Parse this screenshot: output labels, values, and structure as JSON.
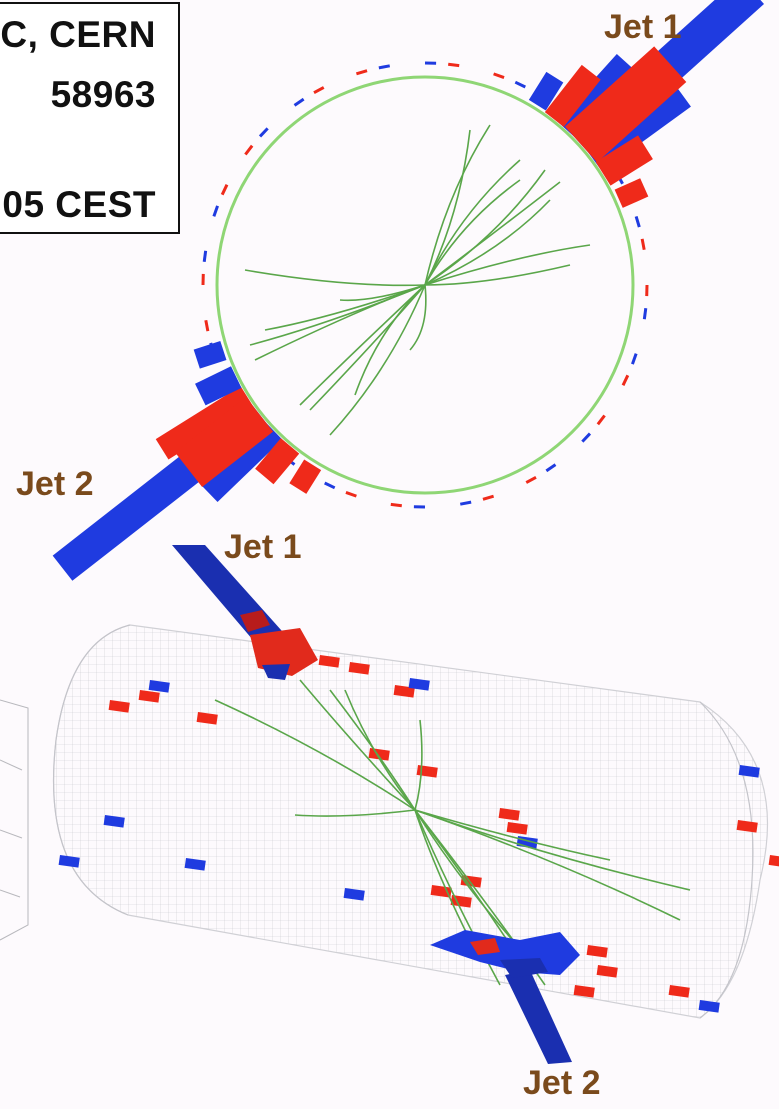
{
  "info_box": {
    "line1": "C, CERN",
    "line2": "58963",
    "line3": "",
    "line4": "05 CEST"
  },
  "transverse_view": {
    "jet1_label": "Jet 1",
    "jet2_label": "Jet 2"
  },
  "longitudinal_view": {
    "jet1_label": "Jet 1",
    "jet2_label": "Jet 2"
  },
  "colors": {
    "track": "#5aa64a",
    "tracker_ring": "#8fd675",
    "em_energy": "#ef2a1a",
    "had_energy": "#1f3be0",
    "label": "#7a4a1c",
    "background": "#fdfafd"
  }
}
